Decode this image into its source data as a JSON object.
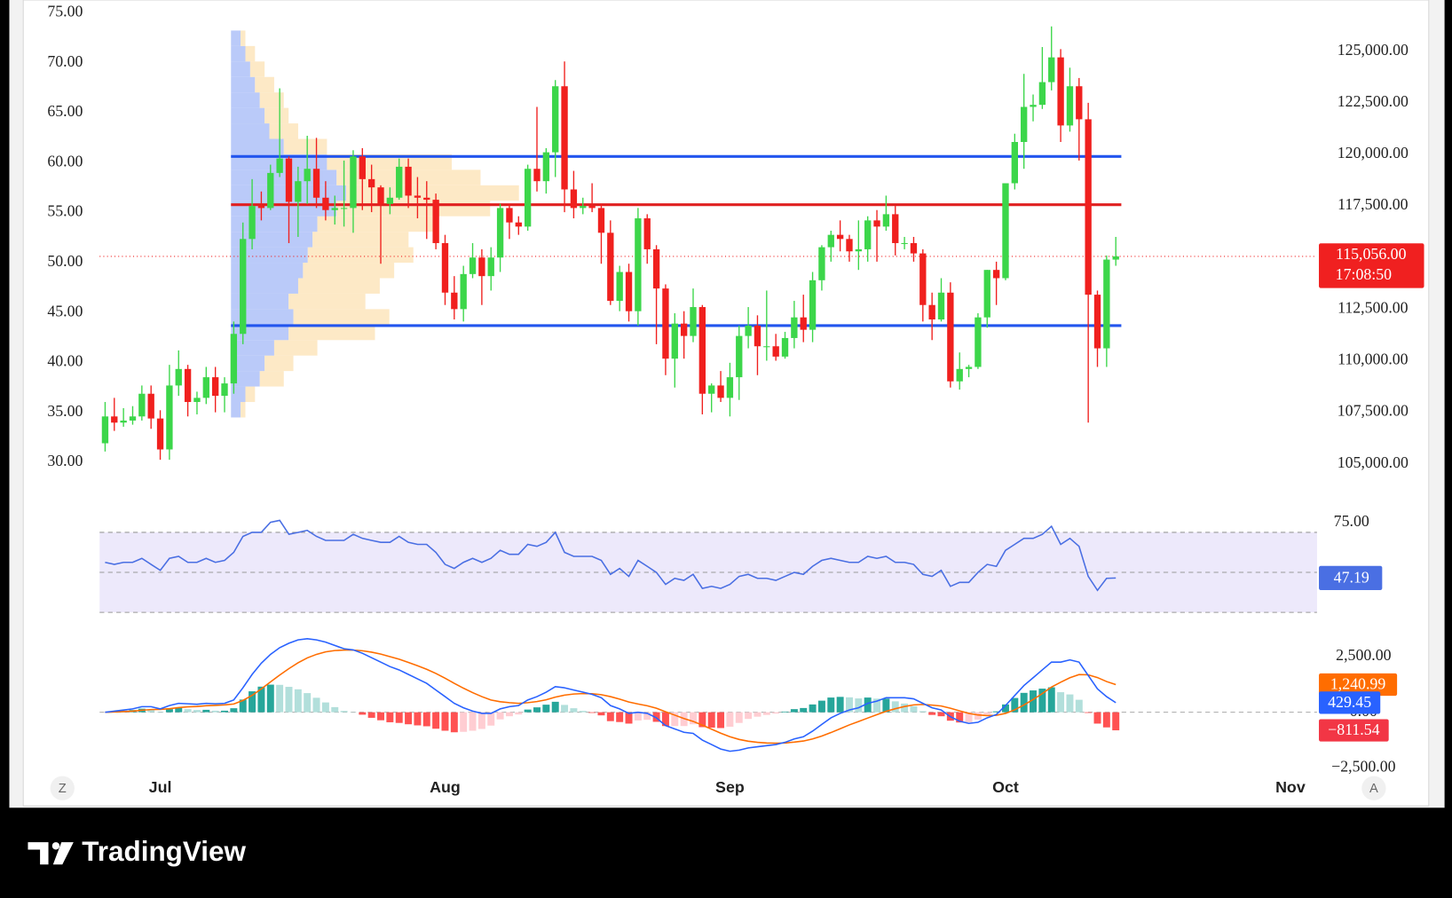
{
  "chart_data": {
    "type": "candlestick",
    "x": [
      0,
      1,
      2,
      3,
      4,
      5,
      6,
      7,
      8,
      9,
      10,
      11,
      12,
      13,
      14,
      15,
      16,
      17,
      18,
      19,
      20,
      21,
      22,
      23,
      24,
      25,
      26,
      27,
      28,
      29,
      30,
      31,
      32,
      33,
      34,
      35,
      36,
      37,
      38,
      39,
      40,
      41,
      42,
      43,
      44,
      45,
      46,
      47,
      48,
      49,
      50,
      51,
      52,
      53,
      54,
      55,
      56,
      57,
      58,
      59,
      60,
      61,
      62,
      63,
      64,
      65,
      66,
      67,
      68,
      69,
      70,
      71,
      72,
      73,
      74,
      75,
      76,
      77,
      78,
      79,
      80,
      81,
      82,
      83,
      84,
      85,
      86,
      87,
      88,
      89,
      90,
      91,
      92,
      93,
      94,
      95,
      96,
      97,
      98,
      99,
      100,
      101,
      102,
      103,
      104,
      105,
      106,
      107,
      108,
      109,
      110
    ],
    "open": [
      106000,
      107300,
      107000,
      107100,
      107300,
      108400,
      107200,
      105700,
      108800,
      109600,
      108000,
      108200,
      109200,
      108300,
      108900,
      111300,
      115900,
      117500,
      117400,
      119100,
      119800,
      117700,
      118700,
      119300,
      117900,
      117300,
      117400,
      117400,
      119900,
      118800,
      118400,
      117600,
      117900,
      119400,
      118000,
      117900,
      117800,
      115700,
      113300,
      112500,
      114200,
      115000,
      114100,
      115000,
      117400,
      116700,
      116500,
      119300,
      118700,
      120100,
      123300,
      118300,
      117400,
      117500,
      117400,
      116200,
      112900,
      114300,
      112400,
      116900,
      115400,
      113500,
      110100,
      111800,
      111200,
      112600,
      108400,
      108800,
      108200,
      109200,
      111200,
      111700,
      110700,
      110700,
      110200,
      111100,
      112100,
      111500,
      113900,
      115500,
      116100,
      115900,
      115300,
      115400,
      116800,
      116500,
      117100,
      115700,
      115700,
      115200,
      112700,
      112000,
      113300,
      109000,
      109600,
      109700,
      112100,
      114400,
      114000,
      118600,
      120600,
      122300,
      122400,
      123500,
      124700,
      121400,
      123300,
      121700,
      113200,
      110600,
      114900
    ],
    "high": [
      108000,
      108200,
      107700,
      107800,
      108800,
      108800,
      107600,
      109800,
      110500,
      109800,
      108500,
      109700,
      109700,
      109200,
      111900,
      116700,
      118800,
      118200,
      119500,
      123200,
      119900,
      119400,
      120900,
      120800,
      118700,
      118000,
      119700,
      120200,
      120300,
      119500,
      118500,
      118400,
      119800,
      119800,
      118900,
      118700,
      118100,
      116100,
      114100,
      114600,
      115700,
      115400,
      115500,
      117600,
      117600,
      117000,
      119500,
      122300,
      120300,
      123600,
      124500,
      119200,
      117900,
      118600,
      117600,
      116800,
      114600,
      114700,
      117400,
      117100,
      115600,
      113700,
      112300,
      112400,
      113500,
      112700,
      108900,
      109500,
      109900,
      111700,
      112600,
      112200,
      113400,
      111300,
      111400,
      112900,
      113200,
      114300,
      115600,
      116300,
      116800,
      116100,
      116800,
      117000,
      117300,
      118000,
      117500,
      116000,
      116000,
      115400,
      113300,
      114000,
      113800,
      110400,
      109800,
      112300,
      114400,
      114800,
      118600,
      121000,
      123900,
      122900,
      125200,
      126200,
      125100,
      124200,
      123700,
      122500,
      113400,
      115100,
      116000
    ],
    "low": [
      105600,
      106600,
      106800,
      106900,
      107100,
      106700,
      105200,
      105200,
      108300,
      107300,
      107400,
      107900,
      107500,
      107500,
      108400,
      110800,
      115400,
      116800,
      117300,
      118900,
      115700,
      116000,
      117600,
      117400,
      116800,
      116600,
      116500,
      116200,
      117300,
      117200,
      114700,
      117100,
      117800,
      117400,
      116900,
      115900,
      115400,
      112700,
      112000,
      111900,
      114000,
      112700,
      113400,
      114300,
      115900,
      116100,
      116300,
      118200,
      118100,
      118900,
      117200,
      116900,
      117100,
      117200,
      114700,
      112700,
      112400,
      111900,
      111700,
      114700,
      110800,
      109300,
      108700,
      110100,
      110900,
      107400,
      107500,
      108000,
      107300,
      108100,
      110600,
      109300,
      110000,
      110000,
      110100,
      110600,
      110900,
      110900,
      113400,
      114800,
      115300,
      114800,
      114400,
      114800,
      114800,
      116300,
      115100,
      115400,
      114800,
      111900,
      111000,
      111900,
      108700,
      108600,
      109200,
      109600,
      111600,
      112700,
      113900,
      118300,
      119300,
      121600,
      122200,
      123100,
      120600,
      121100,
      119700,
      107000,
      109700,
      109700,
      114600
    ],
    "close": [
      107300,
      107000,
      107100,
      107300,
      108400,
      107200,
      105700,
      108800,
      109600,
      108000,
      108200,
      109200,
      108300,
      108900,
      111300,
      115900,
      117500,
      117400,
      119100,
      119800,
      117700,
      118700,
      119300,
      117900,
      117300,
      117400,
      117400,
      119900,
      118800,
      118400,
      117600,
      117900,
      119400,
      118000,
      117900,
      117800,
      115700,
      113300,
      112500,
      114200,
      115000,
      114100,
      115000,
      117400,
      116700,
      116500,
      119300,
      118700,
      120100,
      123300,
      118300,
      117400,
      117500,
      117400,
      116200,
      112900,
      114300,
      112400,
      116900,
      115400,
      113500,
      110100,
      111800,
      111200,
      112600,
      108400,
      108800,
      108200,
      109200,
      111200,
      111700,
      110700,
      110700,
      110200,
      111100,
      112100,
      111500,
      113900,
      115500,
      116100,
      115900,
      115300,
      115400,
      116800,
      116500,
      117100,
      115700,
      115700,
      115200,
      112700,
      112000,
      113300,
      109000,
      109600,
      109700,
      112100,
      114400,
      114000,
      118600,
      120600,
      122300,
      122400,
      123500,
      124700,
      121400,
      123300,
      121700,
      113200,
      110600,
      114900,
      115056
    ],
    "up_color": "#3cd64a",
    "down_color": "#f0201e",
    "xlim": [
      -0.6,
      131.9
    ],
    "xticks": [
      {
        "value": 6,
        "label": "Jul"
      },
      {
        "value": 37,
        "label": "Aug"
      },
      {
        "value": 68,
        "label": "Sep"
      },
      {
        "value": 98,
        "label": "Oct"
      },
      {
        "value": 129,
        "label": "Nov"
      }
    ],
    "ylim": [
      103580,
      127480
    ],
    "yticks": [
      {
        "value": 105000,
        "label": "105,000.00"
      },
      {
        "value": 107500,
        "label": "107,500.00"
      },
      {
        "value": 110000,
        "label": "110,000.00"
      },
      {
        "value": 112500,
        "label": "112,500.00"
      },
      {
        "value": 115000,
        "label": "115,000.00"
      },
      {
        "value": 117500,
        "label": "117,500.00"
      },
      {
        "value": 120000,
        "label": "120,000.00"
      },
      {
        "value": 122500,
        "label": "122,500.00"
      },
      {
        "value": 125000,
        "label": "125,000.00"
      }
    ],
    "left_axis": {
      "ylim": [
        26.9,
        76.3
      ],
      "yticks": [
        {
          "value": 30,
          "label": "30.00"
        },
        {
          "value": 35,
          "label": "35.00"
        },
        {
          "value": 40,
          "label": "40.00"
        },
        {
          "value": 45,
          "label": "45.00"
        },
        {
          "value": 50,
          "label": "50.00"
        },
        {
          "value": 55,
          "label": "55.00"
        },
        {
          "value": 60,
          "label": "60.00"
        },
        {
          "value": 65,
          "label": "65.00"
        },
        {
          "value": 70,
          "label": "70.00"
        },
        {
          "value": 75,
          "label": "75.00"
        }
      ]
    },
    "levels": [
      {
        "price": 119900,
        "color": "#2255ee",
        "from": 13.7,
        "to": 110.6
      },
      {
        "price": 117560,
        "color": "#e02020",
        "from": 13.7,
        "to": 110.6
      },
      {
        "price": 111700,
        "color": "#2255ee",
        "from": 13.7,
        "to": 110.6
      }
    ],
    "last_price": {
      "value": 115056,
      "label": "115,056.00",
      "countdown": "17:08:50",
      "color": "#f02020"
    },
    "volume_profile": {
      "x_start": 13.7,
      "xlim": [
        0,
        320
      ],
      "up_color": "#a9bdf7",
      "down_color": "#fde3b8",
      "bins": [
        107250,
        108000,
        108750,
        109500,
        110250,
        111000,
        111750,
        112500,
        113250,
        114000,
        114750,
        115500,
        116250,
        117000,
        117750,
        118500,
        119250,
        120000,
        120750,
        121500,
        122250,
        123000,
        123750,
        124500,
        125250,
        126000
      ],
      "up": [
        10,
        15,
        30,
        35,
        45,
        60,
        65,
        60,
        70,
        75,
        80,
        85,
        90,
        110,
        120,
        110,
        100,
        55,
        40,
        35,
        30,
        25,
        20,
        15,
        10
      ],
      "down": [
        5,
        10,
        25,
        30,
        45,
        90,
        100,
        80,
        85,
        95,
        110,
        100,
        120,
        160,
        180,
        150,
        130,
        45,
        30,
        25,
        25,
        20,
        15,
        10,
        5
      ]
    },
    "indicators": [
      {
        "type": "line",
        "color": "#4a6fe3",
        "band_color": "#ede9fb",
        "ylim": [
          19.8,
          81.2
        ],
        "yticks": [
          {
            "value": 75,
            "label": "75.00"
          }
        ],
        "bands": [
          30,
          70
        ],
        "midline": 50,
        "values": [
          55,
          54,
          55,
          55,
          57,
          54,
          51,
          57,
          58,
          55,
          55,
          57,
          55,
          56,
          60,
          68,
          70,
          70,
          75,
          76,
          69,
          70,
          71,
          68,
          66,
          66,
          66,
          69,
          67,
          66,
          65,
          65,
          68,
          65,
          64,
          64,
          60,
          54,
          52,
          55,
          57,
          55,
          57,
          61,
          59,
          59,
          64,
          63,
          65,
          70,
          60,
          58,
          58,
          58,
          56,
          49,
          52,
          48,
          56,
          53,
          50,
          44,
          47,
          46,
          49,
          42,
          43,
          42,
          44,
          48,
          49,
          47,
          47,
          46,
          48,
          50,
          49,
          53,
          56,
          57,
          56,
          55,
          55,
          58,
          57,
          58,
          55,
          55,
          54,
          49,
          48,
          51,
          43,
          45,
          45,
          50,
          54,
          53,
          61,
          64,
          67,
          67,
          69,
          73,
          64,
          67,
          63,
          48,
          41,
          47,
          47.19
        ]
      },
      {
        "type": "macd",
        "ylim": [
          -2700,
          3150
        ],
        "yticks": [
          {
            "value": -2500,
            "label": "−2,500.00"
          },
          {
            "value": 0,
            "label": "0.00"
          },
          {
            "value": 2500,
            "label": "2,500.00"
          }
        ],
        "hist_colors": [
          "#26a69a",
          "#b2dfdb",
          "#ff5252",
          "#ffcdd2"
        ],
        "macd": {
          "color": "#2962ff",
          "last_label": "429.45",
          "values": [
            0,
            50,
            100,
            150,
            250,
            250,
            150,
            300,
            400,
            380,
            360,
            400,
            380,
            400,
            550,
            1100,
            1700,
            2200,
            2600,
            2900,
            3100,
            3250,
            3300,
            3250,
            3150,
            3000,
            2850,
            2800,
            2650,
            2450,
            2250,
            2050,
            1900,
            1700,
            1500,
            1300,
            1000,
            700,
            400,
            200,
            50,
            -50,
            -50,
            150,
            250,
            300,
            550,
            700,
            900,
            1150,
            1100,
            1000,
            900,
            800,
            650,
            300,
            150,
            -50,
            0,
            -50,
            -250,
            -600,
            -750,
            -900,
            -950,
            -1250,
            -1450,
            -1650,
            -1750,
            -1700,
            -1600,
            -1550,
            -1500,
            -1450,
            -1350,
            -1200,
            -1100,
            -850,
            -550,
            -250,
            -50,
            100,
            200,
            400,
            500,
            650,
            650,
            650,
            600,
            400,
            200,
            100,
            -200,
            -400,
            -500,
            -450,
            -250,
            -100,
            300,
            750,
            1200,
            1550,
            1900,
            2250,
            2250,
            2350,
            2250,
            1650,
            1050,
            700,
            429.45
          ]
        },
        "signal": {
          "color": "#ff6d00",
          "last_label": "1,240.99",
          "values": [
            0,
            10,
            30,
            50,
            90,
            120,
            130,
            160,
            210,
            240,
            260,
            290,
            310,
            330,
            370,
            530,
            760,
            1050,
            1360,
            1670,
            1960,
            2220,
            2440,
            2600,
            2710,
            2770,
            2790,
            2790,
            2760,
            2700,
            2610,
            2500,
            2380,
            2240,
            2090,
            1930,
            1740,
            1530,
            1300,
            1080,
            880,
            700,
            550,
            470,
            430,
            400,
            430,
            480,
            560,
            680,
            770,
            820,
            840,
            830,
            790,
            700,
            590,
            460,
            370,
            290,
            180,
            20,
            -130,
            -280,
            -410,
            -580,
            -760,
            -940,
            -1100,
            -1220,
            -1300,
            -1350,
            -1380,
            -1390,
            -1380,
            -1340,
            -1290,
            -1200,
            -1070,
            -910,
            -740,
            -570,
            -420,
            -260,
            -110,
            40,
            160,
            260,
            330,
            350,
            320,
            280,
            180,
            60,
            -50,
            -120,
            -150,
            -140,
            -50,
            110,
            330,
            570,
            840,
            1130,
            1350,
            1550,
            1690,
            1680,
            1560,
            1380,
            1240.99
          ]
        },
        "histogram": {
          "color": "#f23645",
          "last_label": "−811.54",
          "values": [
            0,
            40,
            70,
            100,
            160,
            130,
            20,
            140,
            190,
            140,
            100,
            110,
            70,
            70,
            180,
            570,
            940,
            1150,
            1240,
            1230,
            1140,
            1030,
            860,
            650,
            440,
            230,
            60,
            10,
            -110,
            -250,
            -360,
            -450,
            -480,
            -540,
            -590,
            -630,
            -740,
            -830,
            -900,
            -880,
            -830,
            -750,
            -600,
            -320,
            -180,
            -100,
            120,
            220,
            340,
            470,
            330,
            180,
            60,
            -30,
            -140,
            -400,
            -440,
            -510,
            -370,
            -340,
            -430,
            -620,
            -620,
            -620,
            -540,
            -670,
            -690,
            -710,
            -650,
            -480,
            -300,
            -200,
            -120,
            -60,
            30,
            140,
            190,
            350,
            520,
            660,
            690,
            670,
            620,
            660,
            610,
            610,
            490,
            390,
            270,
            50,
            -120,
            -180,
            -380,
            -460,
            -450,
            -330,
            -100,
            40,
            350,
            640,
            870,
            980,
            1060,
            1120,
            900,
            800,
            560,
            -30,
            -510,
            -680,
            -811.54
          ]
        }
      }
    ]
  },
  "controls": {
    "left": "Z",
    "right": "A"
  },
  "brand": "TradingView"
}
